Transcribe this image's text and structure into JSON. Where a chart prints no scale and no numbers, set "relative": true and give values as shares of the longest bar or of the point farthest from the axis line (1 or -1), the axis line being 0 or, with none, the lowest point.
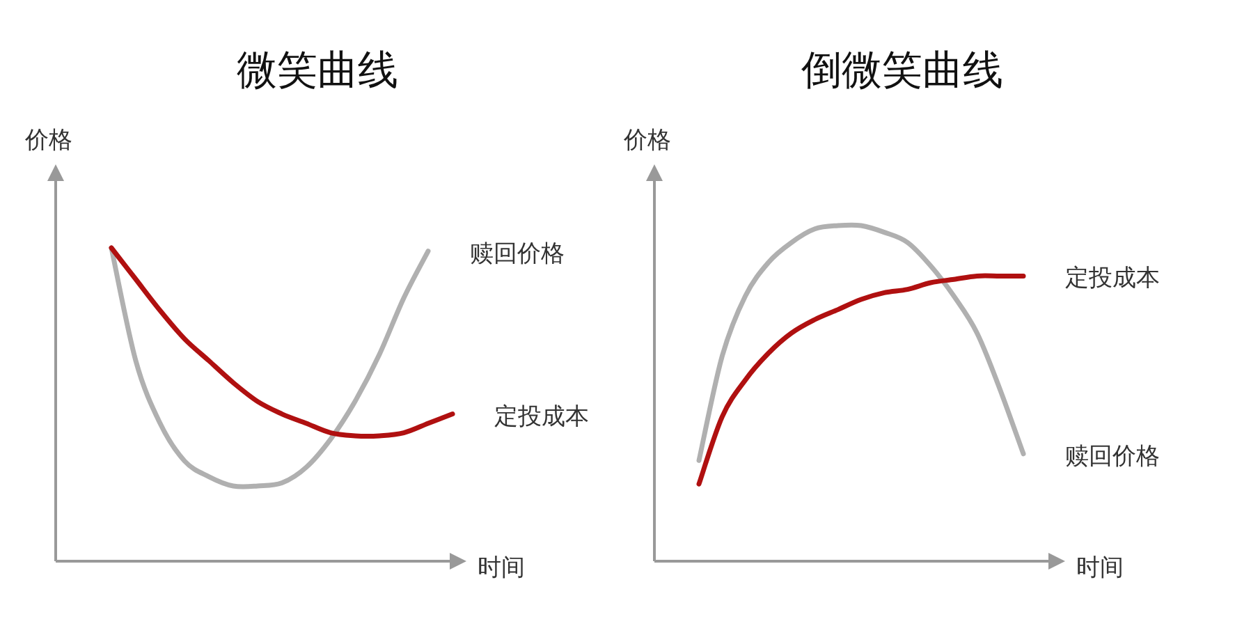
{
  "chart_data": [
    {
      "type": "line",
      "title": "微笑曲线",
      "xlabel": "时间",
      "ylabel": "价格",
      "relative": true,
      "categories": [
        null,
        null,
        null,
        null,
        null,
        null,
        null,
        null,
        null,
        null,
        null,
        null,
        null,
        null,
        null
      ],
      "series": [
        {
          "name": "赎回价格",
          "color": "#b0b0b0",
          "values": [
            1,
            0.64,
            0.44,
            0.32,
            0.27,
            0.24,
            0.24,
            0.25,
            0.3,
            0.39,
            0.51,
            0.66,
            0.84,
            0.99,
            null
          ]
        },
        {
          "name": "定投成本",
          "color": "#b01010",
          "values": [
            1,
            0.9,
            0.8,
            0.71,
            0.64,
            0.57,
            0.51,
            0.47,
            0.44,
            0.41,
            0.4,
            0.4,
            0.41,
            0.44,
            0.47
          ]
        }
      ]
    },
    {
      "type": "line",
      "title": "倒微笑曲线",
      "xlabel": "时间",
      "ylabel": "价格",
      "relative": true,
      "categories": [
        null,
        null,
        null,
        null,
        null,
        null,
        null,
        null,
        null,
        null,
        null,
        null,
        null,
        null,
        null
      ],
      "series": [
        {
          "name": "赎回价格",
          "color": "#b0b0b0",
          "values": [
            0.3,
            0.61,
            0.79,
            0.89,
            0.95,
            0.99,
            1,
            1,
            0.98,
            0.95,
            0.88,
            0.79,
            0.68,
            0.51,
            0.32
          ]
        },
        {
          "name": "定投成本",
          "color": "#b01010",
          "values": [
            0.23,
            0.43,
            0.54,
            0.62,
            0.68,
            0.72,
            0.75,
            0.78,
            0.8,
            0.81,
            0.83,
            0.84,
            0.85,
            0.85,
            0.85
          ]
        }
      ]
    }
  ]
}
